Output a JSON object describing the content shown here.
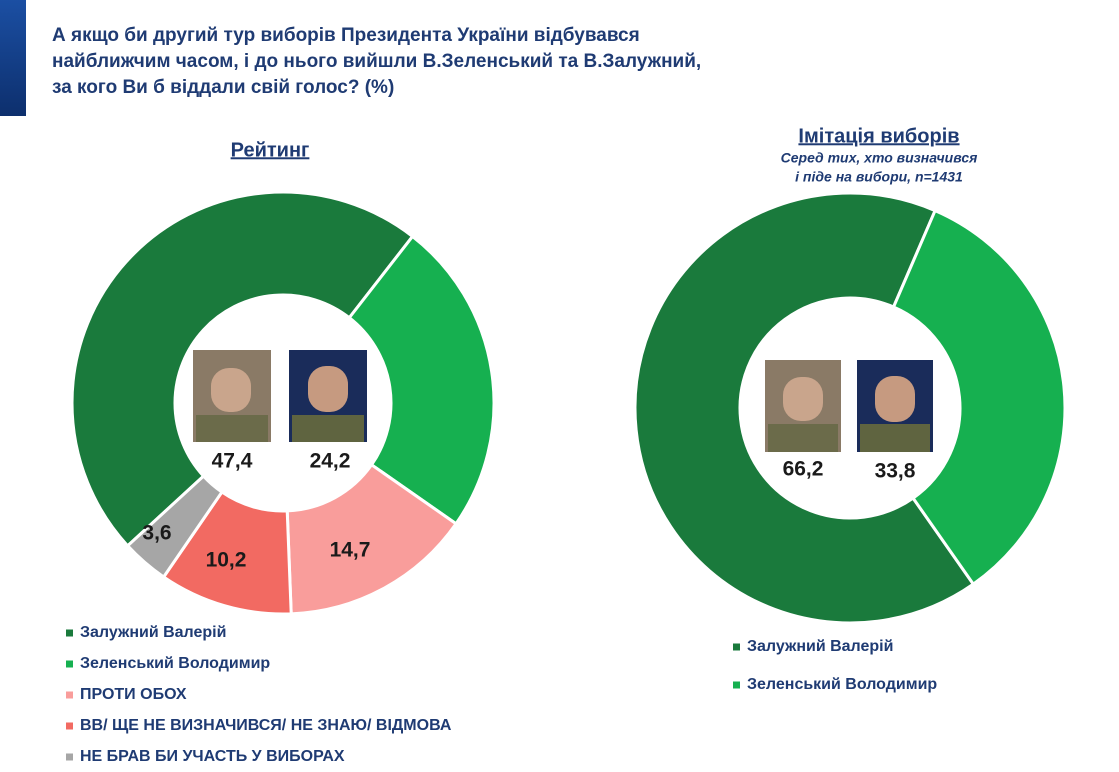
{
  "title": [
    "А якщо би другий тур виборів Президента України відбувався",
    "найближчим часом, і до нього вийшли В.Зеленський та В.Залужний,",
    "за кого Ви б віддали свій голос? (%)"
  ],
  "chart_data": [
    {
      "type": "pie",
      "title": "Рейтинг",
      "categories": [
        "Залужний Валерій",
        "Зеленський Володимир",
        "ПРОТИ ОБОХ",
        "ВВ/ ЩЕ НЕ ВИЗНАЧИВСЯ/ НЕ ЗНАЮ/ ВІДМОВА",
        "НЕ БРАВ БИ УЧАСТЬ У ВИБОРАХ"
      ],
      "values": [
        47.4,
        24.2,
        14.7,
        10.2,
        3.6
      ],
      "value_labels": [
        "47,4",
        "24,2",
        "14,7",
        "10,2",
        "3,6"
      ],
      "colors": [
        "#1a7a3c",
        "#16b050",
        "#f99d9b",
        "#f26a62",
        "#a6a6a6"
      ]
    },
    {
      "type": "pie",
      "title": "Імітація виборів",
      "subtitle": [
        "Серед тих, хто визначився",
        "і піде на вибори, n=1431"
      ],
      "categories": [
        "Залужний Валерій",
        "Зеленський Володимир"
      ],
      "values": [
        66.2,
        33.8
      ],
      "value_labels": [
        "66,2",
        "33,8"
      ],
      "colors": [
        "#1a7a3c",
        "#16b050"
      ]
    }
  ]
}
